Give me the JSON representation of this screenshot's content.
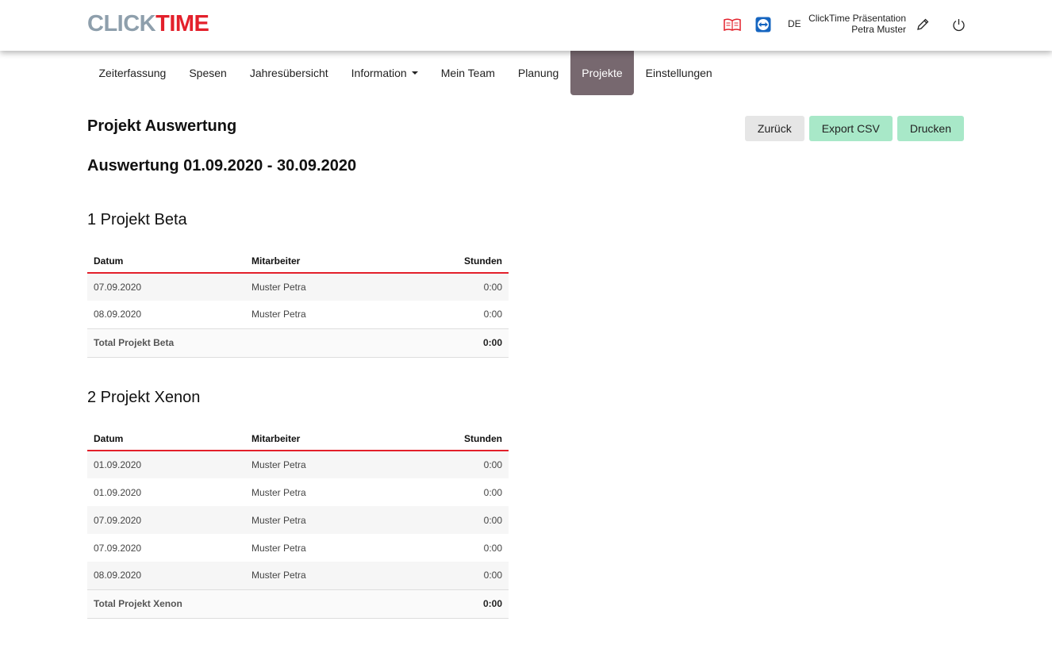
{
  "header": {
    "logo_part1": "CLICK",
    "logo_part2": "TIME",
    "language": "DE",
    "company": "ClickTime Präsentation",
    "user": "Petra Muster",
    "icons": [
      "book-icon",
      "teamviewer-icon",
      "pencil-icon",
      "power-icon"
    ]
  },
  "nav": {
    "items": [
      "Zeiterfassung",
      "Spesen",
      "Jahresübersicht",
      "Information",
      "Mein Team",
      "Planung",
      "Projekte",
      "Einstellungen"
    ],
    "active": "Projekte"
  },
  "page": {
    "title": "Projekt Auswertung",
    "range": "Auswertung 01.09.2020 - 30.09.2020"
  },
  "buttons": {
    "back": "Zurück",
    "export": "Export CSV",
    "print": "Drucken"
  },
  "columns": [
    "Datum",
    "Mitarbeiter",
    "Stunden"
  ],
  "projects": [
    {
      "title": "1 Projekt Beta",
      "rows": [
        [
          "07.09.2020",
          "Muster Petra",
          "0:00"
        ],
        [
          "08.09.2020",
          "Muster Petra",
          "0:00"
        ]
      ],
      "total_label": "Total Projekt Beta",
      "total": "0:00"
    },
    {
      "title": "2 Projekt Xenon",
      "rows": [
        [
          "01.09.2020",
          "Muster Petra",
          "0:00"
        ],
        [
          "01.09.2020",
          "Muster Petra",
          "0:00"
        ],
        [
          "07.09.2020",
          "Muster Petra",
          "0:00"
        ],
        [
          "07.09.2020",
          "Muster Petra",
          "0:00"
        ],
        [
          "08.09.2020",
          "Muster Petra",
          "0:00"
        ]
      ],
      "total_label": "Total Projekt Xenon",
      "total": "0:00"
    }
  ],
  "colors": {
    "accent_red": "#e3202b",
    "logo_grey": "#8e9fac",
    "nav_active": "#77686f",
    "button_green": "#a8e8c8",
    "button_grey": "#e6e6e6"
  }
}
